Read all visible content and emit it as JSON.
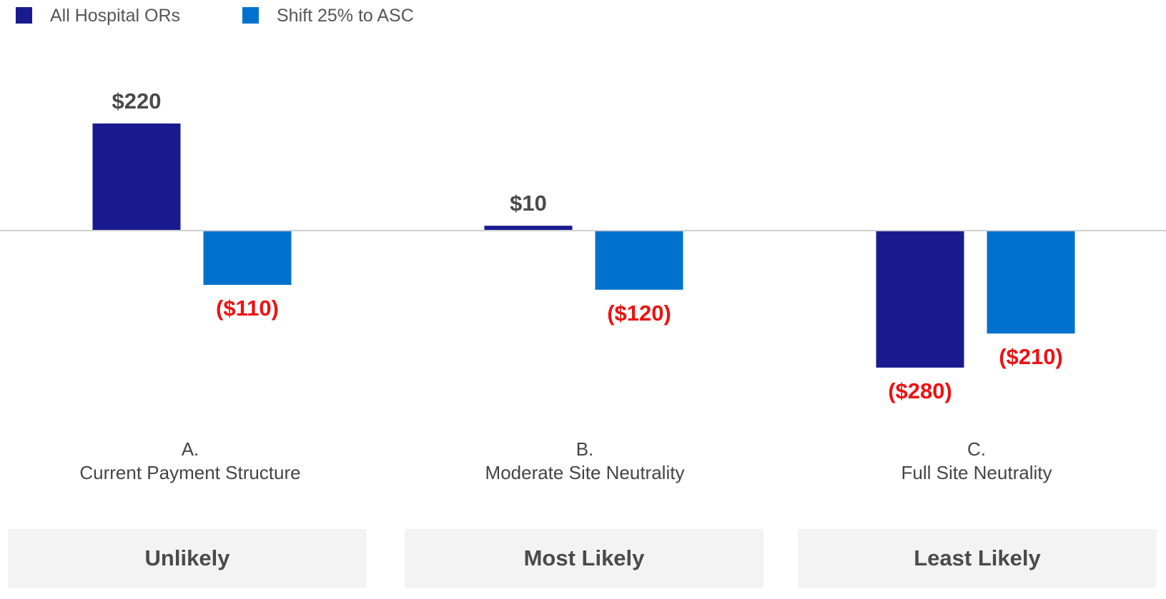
{
  "chart_data": {
    "type": "bar",
    "categories": [
      {
        "letter": "A.",
        "name": "Current Payment Structure"
      },
      {
        "letter": "B.",
        "name": "Moderate Site Neutrality"
      },
      {
        "letter": "C.",
        "name": "Full Site Neutrality"
      }
    ],
    "series": [
      {
        "name": "All Hospital ORs",
        "color": "#1a1a8f",
        "values": [
          220,
          10,
          -280
        ],
        "labels": [
          "$220",
          "$10",
          "($280)"
        ]
      },
      {
        "name": "Shift 25% to ASC",
        "color": "#0072ce",
        "values": [
          -110,
          -120,
          -210
        ],
        "labels": [
          "($110)",
          "($120)",
          "($210)"
        ]
      }
    ],
    "ylim": [
      -390,
      330
    ],
    "grid": false,
    "legend_position": "top-left",
    "label_colors": {
      "positive": "#4a4a4a",
      "negative": "#ee1111"
    },
    "likelihood": [
      "Unlikely",
      "Most Likely",
      "Least Likely"
    ]
  }
}
